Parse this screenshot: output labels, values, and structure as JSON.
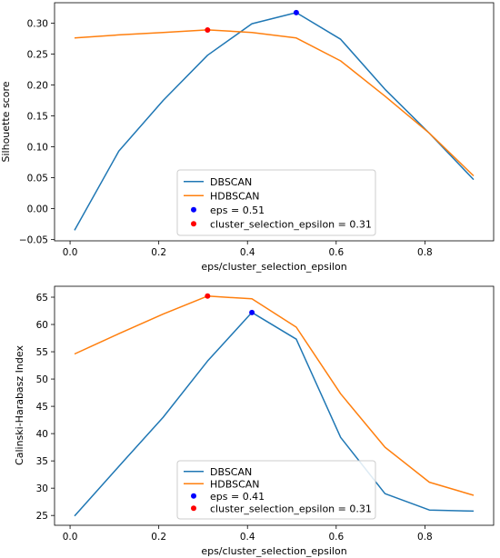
{
  "chart_data": [
    {
      "type": "line",
      "title": "",
      "xlabel": "eps/cluster_selection_epsilon",
      "ylabel": "Silhouette score",
      "xlim": [
        -0.035,
        0.955
      ],
      "ylim": [
        -0.052,
        0.333
      ],
      "xticks": [
        0.0,
        0.2,
        0.4,
        0.6,
        0.8
      ],
      "xtick_labels": [
        "0.0",
        "0.2",
        "0.4",
        "0.6",
        "0.8"
      ],
      "yticks": [
        -0.05,
        0.0,
        0.05,
        0.1,
        0.15,
        0.2,
        0.25,
        0.3
      ],
      "ytick_labels": [
        "−0.05",
        "0.00",
        "0.05",
        "0.10",
        "0.15",
        "0.20",
        "0.25",
        "0.30"
      ],
      "grid": false,
      "legend_position": "bottom-center",
      "x": [
        0.01,
        0.11,
        0.21,
        0.31,
        0.41,
        0.51,
        0.61,
        0.71,
        0.81,
        0.91
      ],
      "series": [
        {
          "name": "DBSCAN",
          "color": "#1f77b4",
          "values": [
            -0.035,
            0.093,
            0.175,
            0.248,
            0.299,
            0.317,
            0.274,
            0.193,
            0.122,
            0.047
          ]
        },
        {
          "name": "HDBSCAN",
          "color": "#ff7f0e",
          "values": [
            0.276,
            0.281,
            0.285,
            0.289,
            0.285,
            0.276,
            0.239,
            0.182,
            0.122,
            0.053
          ]
        }
      ],
      "markers": [
        {
          "name": "eps = 0.51",
          "color": "#0000ff",
          "x": 0.51,
          "y": 0.317
        },
        {
          "name": "cluster_selection_epsilon = 0.31",
          "color": "#ff0000",
          "x": 0.31,
          "y": 0.289
        }
      ]
    },
    {
      "type": "line",
      "title": "",
      "xlabel": "eps/cluster_selection_epsilon",
      "ylabel": "Calinski-Harabasz Index",
      "xlim": [
        -0.035,
        0.955
      ],
      "ylim": [
        23.2,
        67.0
      ],
      "xticks": [
        0.0,
        0.2,
        0.4,
        0.6,
        0.8
      ],
      "xtick_labels": [
        "0.0",
        "0.2",
        "0.4",
        "0.6",
        "0.8"
      ],
      "yticks": [
        25,
        30,
        35,
        40,
        45,
        50,
        55,
        60,
        65
      ],
      "ytick_labels": [
        "25",
        "30",
        "35",
        "40",
        "45",
        "50",
        "55",
        "60",
        "65"
      ],
      "grid": false,
      "legend_position": "bottom-center",
      "x": [
        0.01,
        0.11,
        0.21,
        0.31,
        0.41,
        0.51,
        0.61,
        0.71,
        0.81,
        0.91
      ],
      "series": [
        {
          "name": "DBSCAN",
          "color": "#1f77b4",
          "values": [
            24.9,
            34.0,
            43.0,
            53.3,
            62.2,
            57.3,
            39.3,
            29.0,
            26.0,
            25.8
          ]
        },
        {
          "name": "HDBSCAN",
          "color": "#ff7f0e",
          "values": [
            54.6,
            58.3,
            61.9,
            65.2,
            64.7,
            59.5,
            47.3,
            37.5,
            31.1,
            28.7
          ]
        }
      ],
      "markers": [
        {
          "name": "eps = 0.41",
          "color": "#0000ff",
          "x": 0.41,
          "y": 62.2
        },
        {
          "name": "cluster_selection_epsilon = 0.31",
          "color": "#ff0000",
          "x": 0.31,
          "y": 65.2
        }
      ]
    }
  ]
}
